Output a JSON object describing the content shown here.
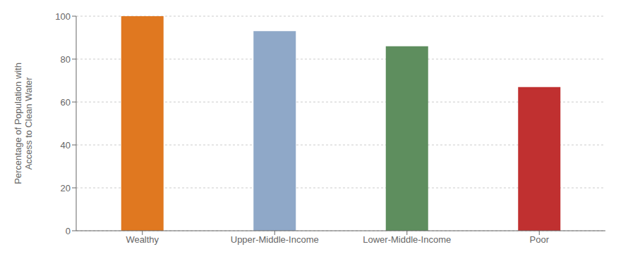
{
  "chart_data": {
    "type": "bar",
    "categories": [
      "Wealthy",
      "Upper-Middle-Income",
      "Lower-Middle-Income",
      "Poor"
    ],
    "values": [
      100,
      93,
      86,
      67
    ],
    "colors": [
      "#E07820",
      "#8FA8C8",
      "#5E8E5E",
      "#C03030"
    ],
    "ylabel": "Percentage of Population with\nAccess to Clean Water",
    "ylim": [
      0,
      100
    ],
    "yticks": [
      0,
      20,
      40,
      60,
      80,
      100
    ],
    "grid": true
  }
}
